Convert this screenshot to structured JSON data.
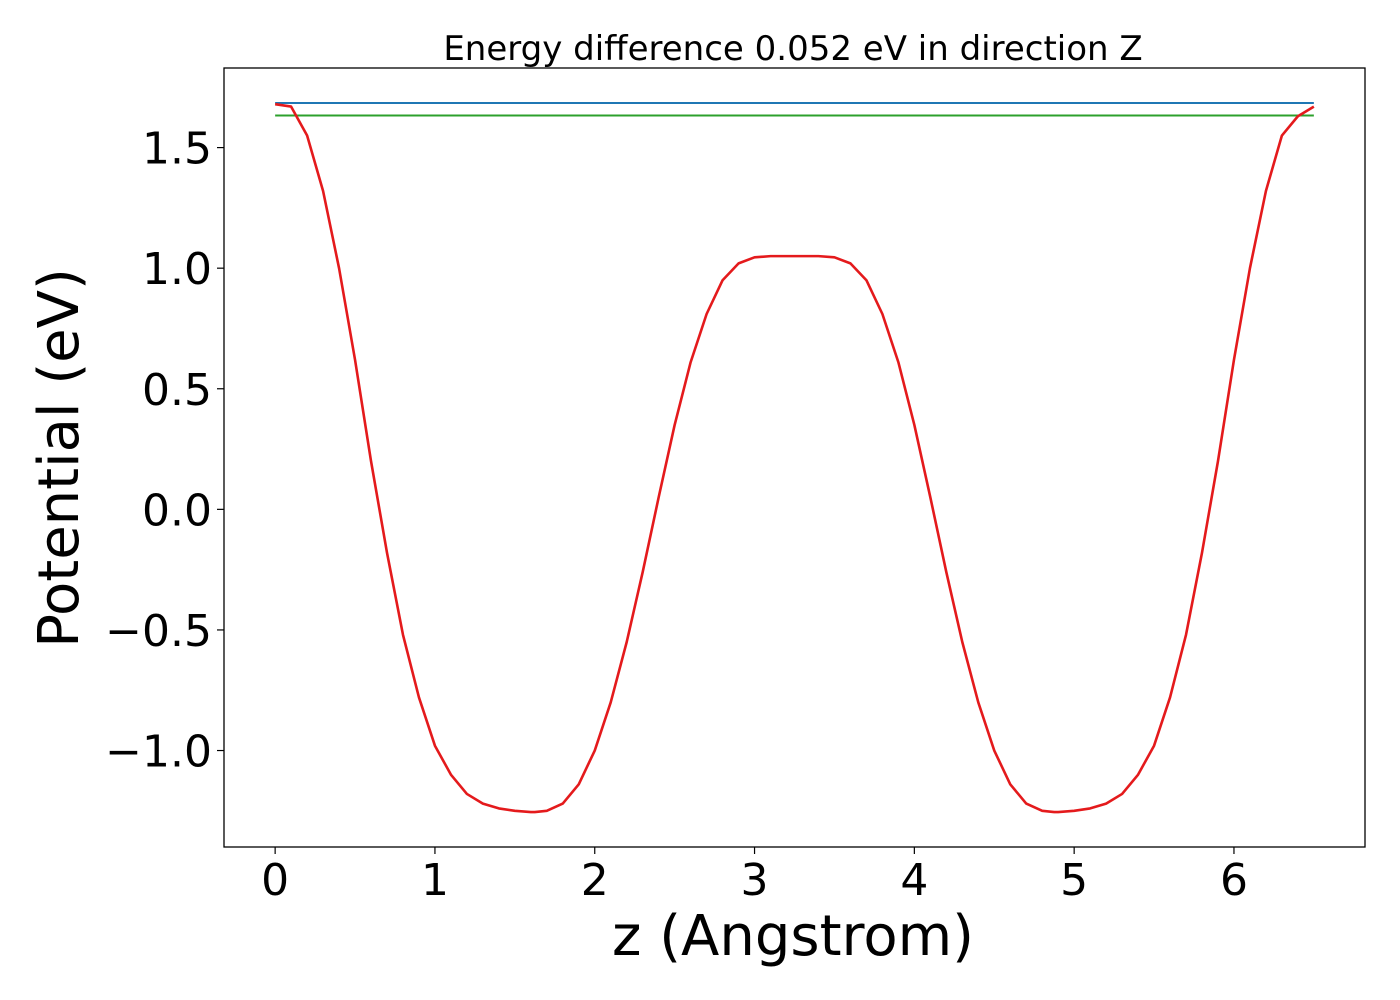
{
  "chart_data": {
    "type": "line",
    "title": "Energy difference 0.052 eV in direction Z",
    "xlabel": "z (Angstrom)",
    "ylabel": "Potential (eV)",
    "xlim": [
      -0.32,
      6.82
    ],
    "ylim": [
      -1.4,
      1.83
    ],
    "xticks": [
      0,
      1,
      2,
      3,
      4,
      5,
      6
    ],
    "xtick_labels": [
      "0",
      "1",
      "2",
      "3",
      "4",
      "5",
      "6"
    ],
    "yticks": [
      -1.0,
      -0.5,
      0.0,
      0.5,
      1.0,
      1.5
    ],
    "ytick_labels": [
      "−1.0",
      "−0.5",
      "0.0",
      "0.5",
      "1.0",
      "1.5"
    ],
    "grid": false,
    "legend": "none",
    "series": [
      {
        "color": "#1f77b4",
        "x": [
          0,
          6.5
        ],
        "y": [
          1.685,
          1.685
        ]
      },
      {
        "color": "#2ca02c",
        "x": [
          0,
          6.5
        ],
        "y": [
          1.633,
          1.633
        ]
      },
      {
        "color": "#e41a1c",
        "x": [
          0.0,
          0.1,
          0.2,
          0.3,
          0.4,
          0.5,
          0.6,
          0.7,
          0.8,
          0.9,
          1.0,
          1.1,
          1.2,
          1.3,
          1.4,
          1.5,
          1.6,
          1.625,
          1.7,
          1.8,
          1.9,
          2.0,
          2.1,
          2.2,
          2.3,
          2.4,
          2.5,
          2.6,
          2.7,
          2.8,
          2.9,
          3.0,
          3.1,
          3.2,
          3.25,
          3.3,
          3.4,
          3.5,
          3.6,
          3.7,
          3.8,
          3.9,
          4.0,
          4.1,
          4.2,
          4.3,
          4.4,
          4.5,
          4.6,
          4.7,
          4.8,
          4.875,
          4.9,
          5.0,
          5.1,
          5.2,
          5.3,
          5.4,
          5.5,
          5.6,
          5.7,
          5.8,
          5.9,
          6.0,
          6.1,
          6.2,
          6.3,
          6.4,
          6.5
        ],
        "y": [
          1.68,
          1.67,
          1.55,
          1.32,
          1.0,
          0.62,
          0.2,
          -0.18,
          -0.52,
          -0.78,
          -0.98,
          -1.1,
          -1.18,
          -1.22,
          -1.24,
          -1.25,
          -1.255,
          -1.255,
          -1.25,
          -1.22,
          -1.14,
          -1.0,
          -0.8,
          -0.55,
          -0.26,
          0.05,
          0.35,
          0.61,
          0.81,
          0.95,
          1.02,
          1.045,
          1.05,
          1.05,
          1.05,
          1.05,
          1.05,
          1.045,
          1.02,
          0.95,
          0.81,
          0.61,
          0.35,
          0.05,
          -0.26,
          -0.55,
          -0.8,
          -1.0,
          -1.14,
          -1.22,
          -1.25,
          -1.255,
          -1.255,
          -1.25,
          -1.24,
          -1.22,
          -1.18,
          -1.1,
          -0.98,
          -0.78,
          -0.52,
          -0.18,
          0.2,
          0.62,
          1.0,
          1.32,
          1.55,
          1.63,
          1.67
        ]
      }
    ]
  }
}
